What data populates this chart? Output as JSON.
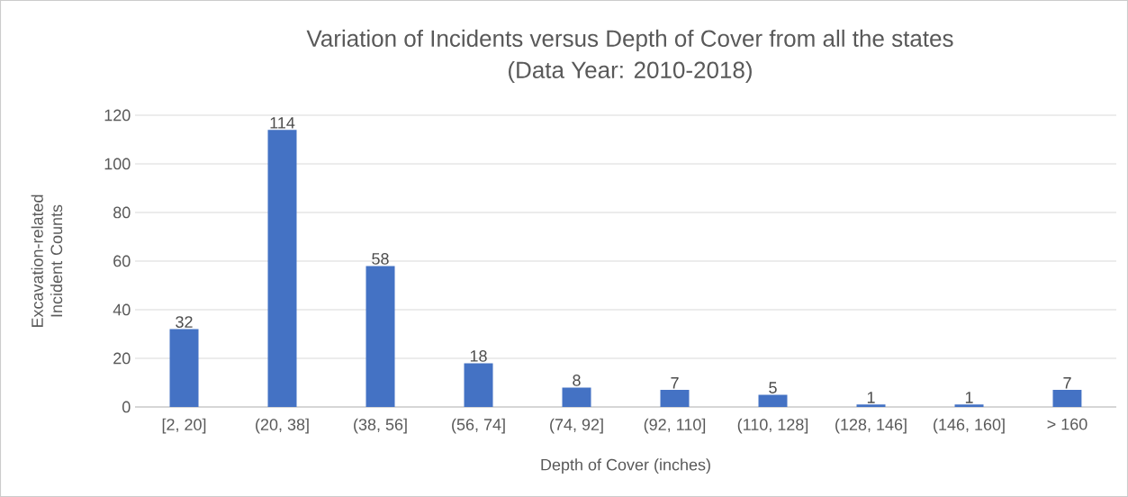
{
  "chart_data": {
    "type": "bar",
    "title": "Variation of Incidents versus Depth of Cover from all the states",
    "subtitle": "(Data Year: 2010-2018)",
    "xlabel": "Depth of Cover (inches)",
    "ylabel": "Excavation-related Incident Counts",
    "categories": [
      "[2, 20]",
      "(20, 38]",
      "(38, 56]",
      "(56, 74]",
      "(74, 92]",
      "(92, 110]",
      "(110, 128]",
      "(128, 146]",
      "(146, 160]",
      "> 160"
    ],
    "values": [
      32,
      114,
      58,
      18,
      8,
      7,
      5,
      1,
      1,
      7
    ],
    "color": "#4472c4",
    "ylim": [
      0,
      120
    ],
    "yticks": [
      0,
      20,
      40,
      60,
      80,
      100,
      120
    ],
    "grid": "y",
    "data_labels": true
  }
}
